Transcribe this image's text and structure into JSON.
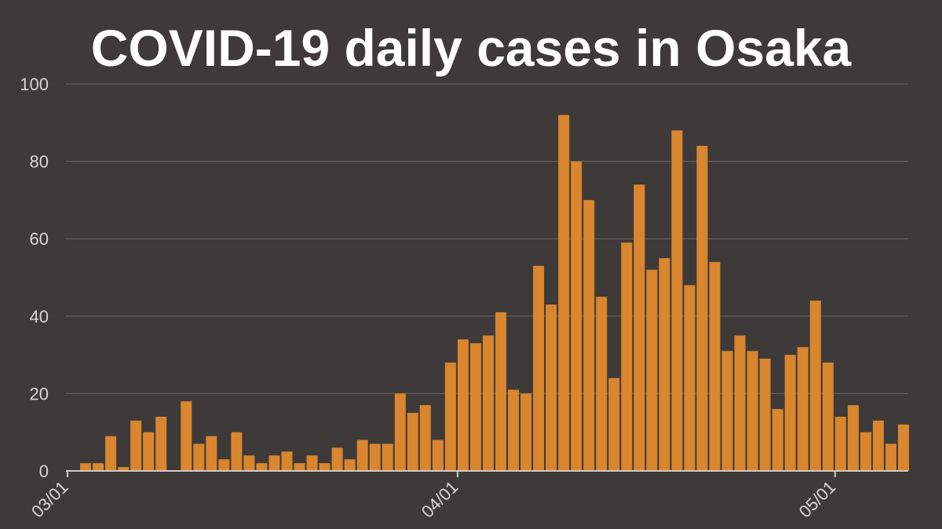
{
  "colors": {
    "background": "#3d3a39",
    "bar": "#d9862f",
    "title": "#ffffff",
    "tick_label": "#d8d5d2",
    "grid": "#6b6764"
  },
  "chart_data": {
    "type": "bar",
    "title": "COVID-19 daily cases in Osaka",
    "xlabel": "",
    "ylabel": "",
    "ylim": [
      0,
      100
    ],
    "yticks": [
      0,
      20,
      40,
      60,
      80,
      100
    ],
    "grid": true,
    "x_tick_labels": [
      {
        "label": "03/01",
        "day_index": 0
      },
      {
        "label": "04/01",
        "day_index": 31
      },
      {
        "label": "05/01",
        "day_index": 61
      }
    ],
    "values": [
      0,
      2,
      2,
      9,
      1,
      13,
      10,
      14,
      0,
      18,
      7,
      9,
      3,
      10,
      4,
      2,
      4,
      5,
      2,
      4,
      2,
      6,
      3,
      8,
      7,
      7,
      20,
      15,
      17,
      8,
      28,
      34,
      33,
      35,
      41,
      21,
      20,
      53,
      43,
      92,
      80,
      70,
      45,
      24,
      59,
      74,
      52,
      55,
      88,
      48,
      84,
      54,
      31,
      35,
      31,
      29,
      16,
      30,
      32,
      44,
      28,
      14,
      17,
      10,
      13,
      7,
      12
    ]
  }
}
